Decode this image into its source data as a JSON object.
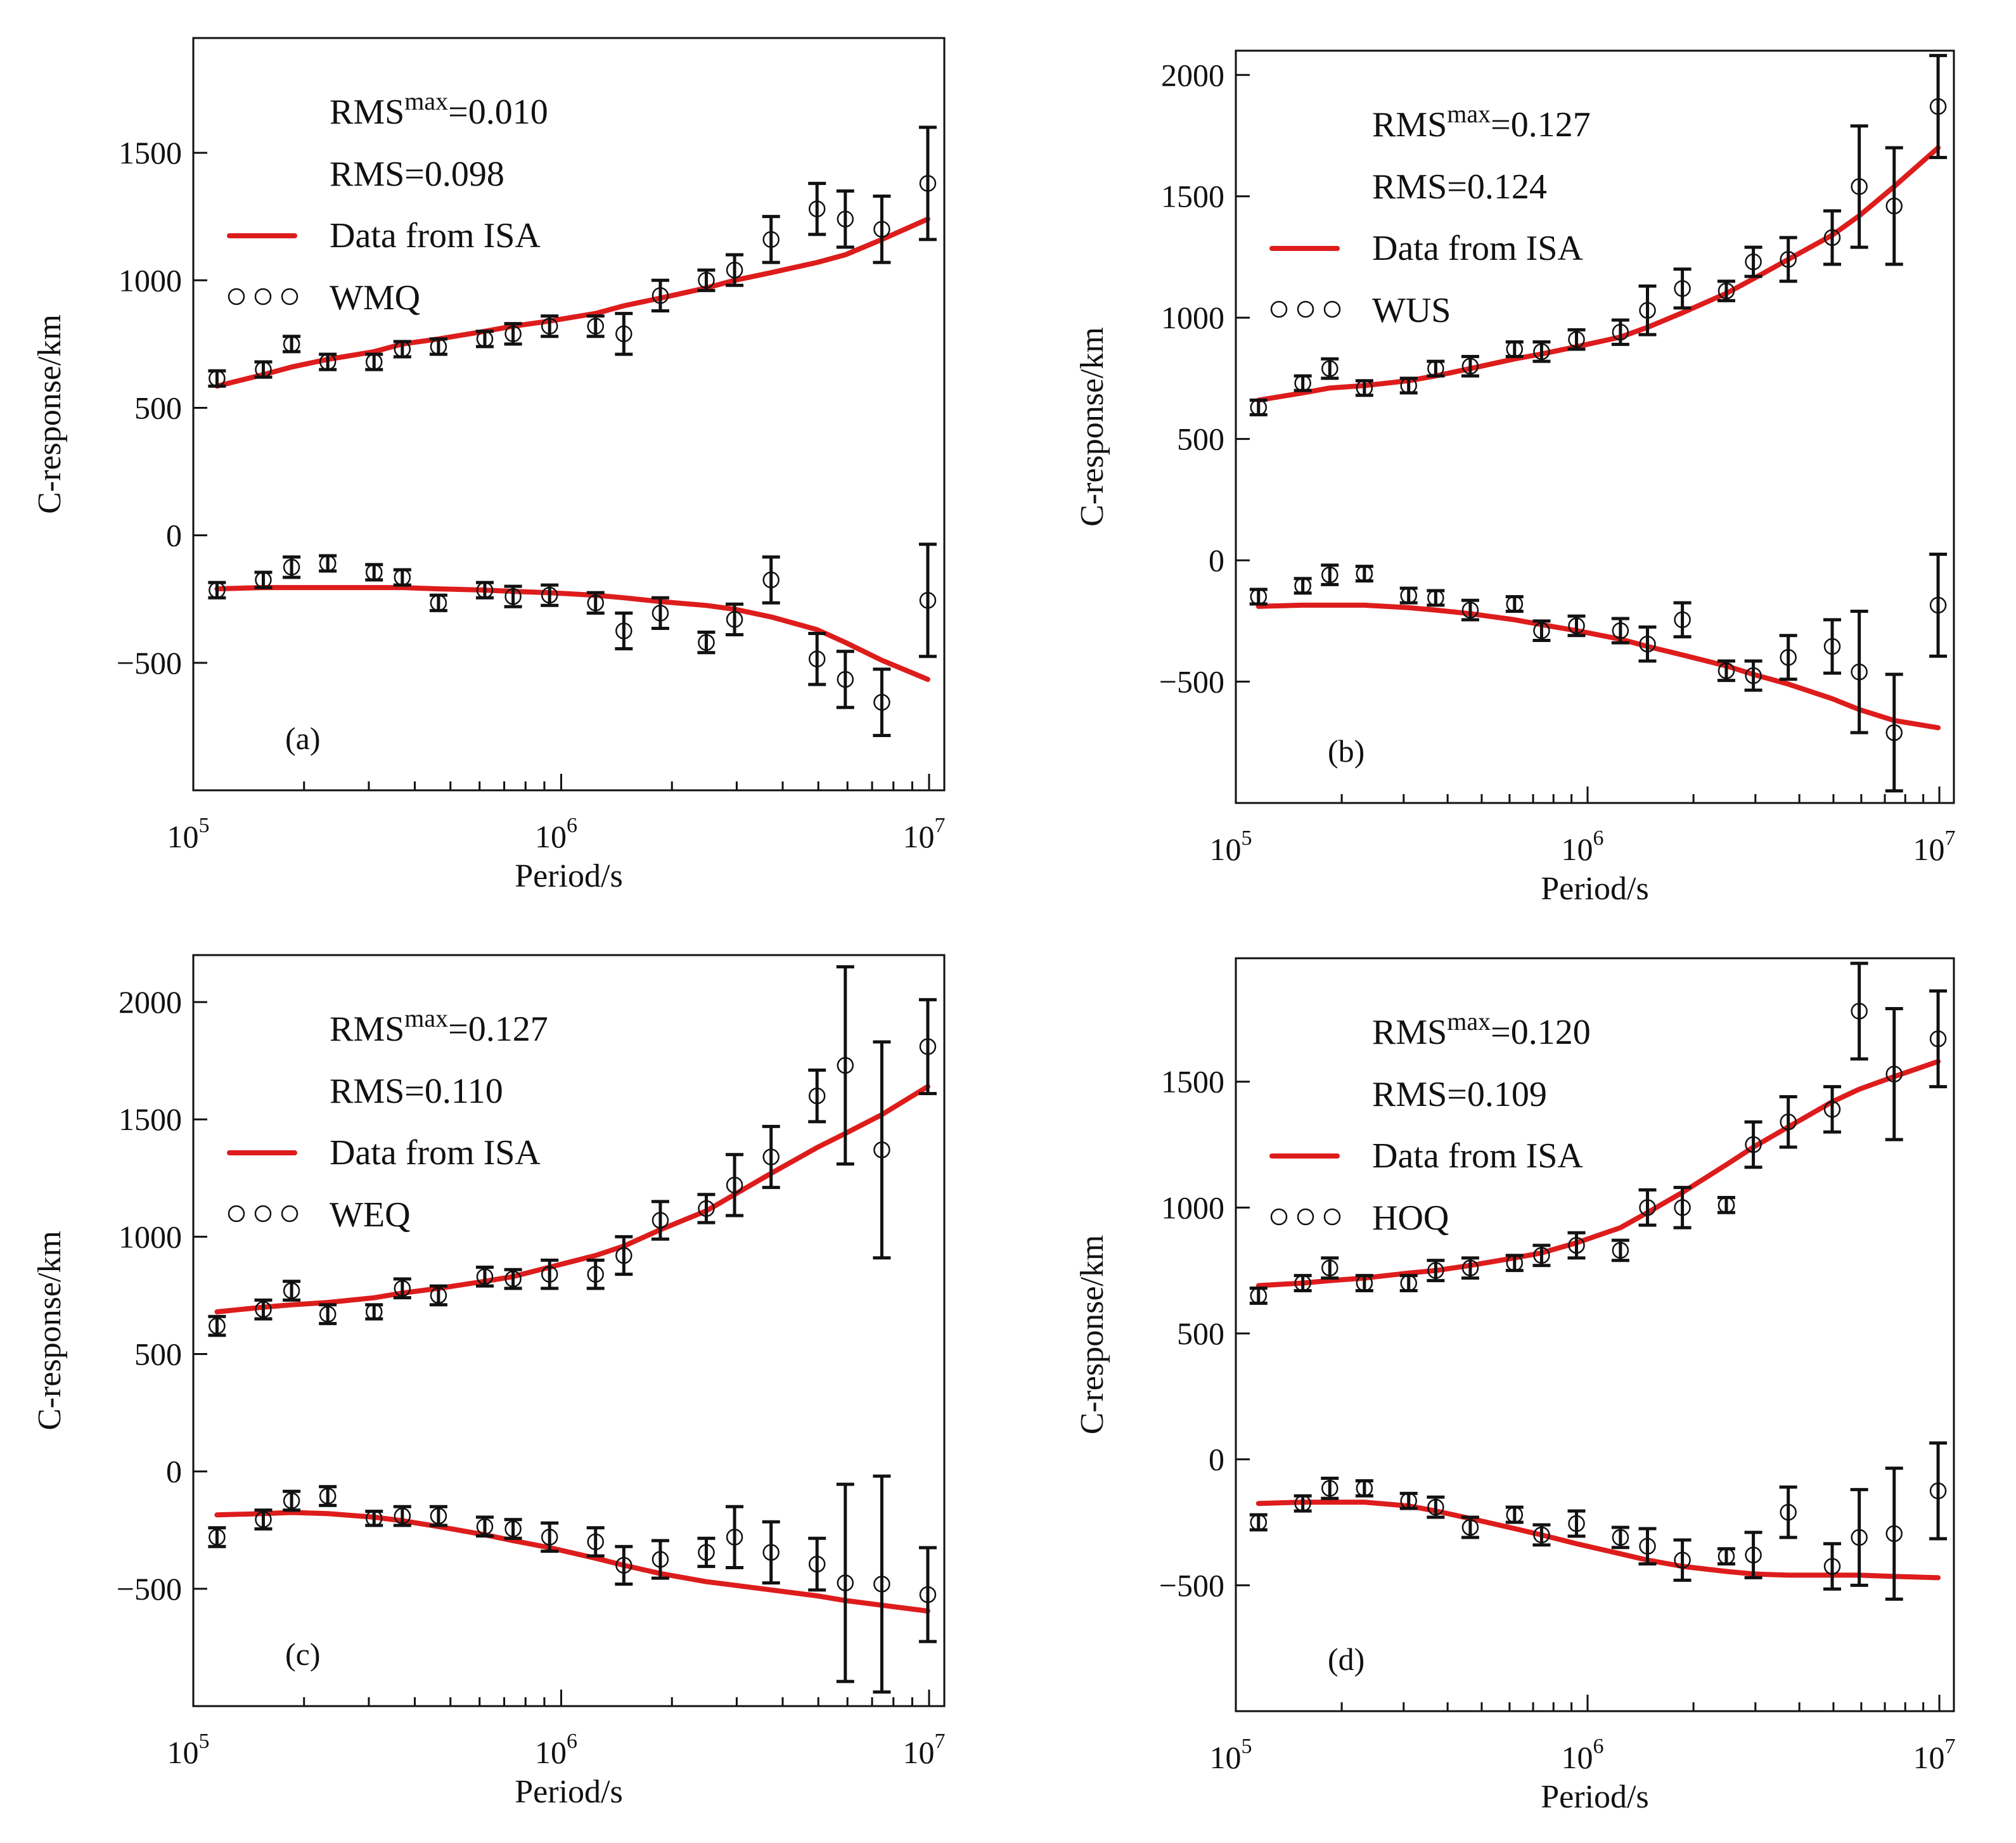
{
  "figure": {
    "colors": {
      "model_line": "#dd1c1c",
      "observed": "#111111"
    }
  },
  "chart_data": [
    {
      "type": "scatter",
      "panel_label": "(a)",
      "title": "",
      "xlabel": "Period/s",
      "ylabel": "C-response/km",
      "xscale": "log",
      "xlim": [
        100000,
        11000000
      ],
      "ylim": [
        -1000,
        1950
      ],
      "yticks": [
        -500,
        0,
        500,
        1000,
        1500
      ],
      "xticks": [
        100000,
        1000000,
        10000000
      ],
      "xtick_labels": [
        {
          "base": "10",
          "exp": "5"
        },
        {
          "base": "10",
          "exp": "6"
        },
        {
          "base": "10",
          "exp": "7"
        }
      ],
      "rms_max_label": "RMS",
      "rms_max_sup": "max",
      "rms_max_value": "=0.010",
      "rms_label": "RMS=0.098",
      "legend": {
        "line": "Data from ISA",
        "markers": "WMQ",
        "position": "top-left"
      },
      "periods": [
        116000,
        155000,
        185000,
        232000,
        310000,
        370000,
        464000,
        620000,
        740000,
        930000,
        1240000,
        1480000,
        1860000,
        2480000,
        2960000,
        3720000,
        4960000,
        5920000,
        7440000,
        9920000
      ],
      "series": [
        {
          "name": "WMQ real",
          "observed": [
            615,
            650,
            750,
            680,
            680,
            730,
            740,
            770,
            790,
            820,
            820,
            790,
            940,
            1000,
            1040,
            1160,
            1280,
            1240,
            1200,
            1380
          ],
          "error": [
            30,
            30,
            30,
            30,
            30,
            30,
            30,
            30,
            40,
            40,
            40,
            80,
            60,
            40,
            60,
            90,
            100,
            110,
            130,
            220
          ],
          "model": [
            585,
            630,
            660,
            690,
            720,
            750,
            770,
            800,
            820,
            840,
            870,
            900,
            930,
            970,
            1000,
            1030,
            1070,
            1100,
            1160,
            1240
          ]
        },
        {
          "name": "WMQ imaginary",
          "observed": [
            -215,
            -175,
            -125,
            -110,
            -145,
            -165,
            -265,
            -215,
            -240,
            -235,
            -265,
            -375,
            -305,
            -420,
            -330,
            -175,
            -485,
            -565,
            -655,
            -255
          ],
          "error": [
            30,
            30,
            40,
            30,
            30,
            30,
            30,
            30,
            40,
            40,
            40,
            70,
            60,
            40,
            60,
            90,
            100,
            110,
            130,
            220
          ],
          "model": [
            -210,
            -205,
            -205,
            -205,
            -205,
            -205,
            -210,
            -215,
            -220,
            -225,
            -235,
            -245,
            -260,
            -275,
            -290,
            -320,
            -370,
            -420,
            -490,
            -565
          ]
        }
      ]
    },
    {
      "type": "scatter",
      "panel_label": "(b)",
      "title": "",
      "xlabel": "Period/s",
      "ylabel": "C-response/km",
      "xscale": "log",
      "xlim": [
        100000,
        11000000
      ],
      "ylim": [
        -1000,
        2100
      ],
      "yticks": [
        -500,
        0,
        500,
        1000,
        1500,
        2000
      ],
      "xticks": [
        100000,
        1000000,
        10000000
      ],
      "xtick_labels": [
        {
          "base": "10",
          "exp": "5"
        },
        {
          "base": "10",
          "exp": "6"
        },
        {
          "base": "10",
          "exp": "7"
        }
      ],
      "rms_max_label": "RMS",
      "rms_max_sup": "max",
      "rms_max_value": "=0.127",
      "rms_label": "RMS=0.124",
      "legend": {
        "line": "Data from ISA",
        "markers": "WUS",
        "position": "top-left"
      },
      "periods": [
        116000,
        155000,
        185000,
        232000,
        310000,
        370000,
        464000,
        620000,
        740000,
        930000,
        1240000,
        1480000,
        1860000,
        2480000,
        2960000,
        3720000,
        4960000,
        5920000,
        7440000,
        9920000
      ],
      "series": [
        {
          "name": "WUS real",
          "observed": [
            630,
            730,
            790,
            710,
            720,
            790,
            800,
            870,
            860,
            910,
            940,
            1030,
            1120,
            1110,
            1230,
            1240,
            1330,
            1540,
            1460,
            1870
          ],
          "error": [
            30,
            30,
            40,
            30,
            30,
            30,
            40,
            30,
            40,
            40,
            50,
            100,
            80,
            40,
            60,
            90,
            110,
            250,
            240,
            210
          ],
          "model": [
            660,
            690,
            710,
            720,
            740,
            760,
            790,
            830,
            850,
            880,
            920,
            960,
            1020,
            1100,
            1160,
            1240,
            1340,
            1420,
            1540,
            1700
          ]
        },
        {
          "name": "WUS imaginary",
          "observed": [
            -150,
            -105,
            -60,
            -55,
            -145,
            -155,
            -205,
            -180,
            -290,
            -270,
            -290,
            -345,
            -245,
            -455,
            -475,
            -400,
            -355,
            -460,
            -710,
            -185
          ],
          "error": [
            30,
            30,
            40,
            30,
            30,
            30,
            40,
            30,
            40,
            40,
            50,
            70,
            70,
            40,
            60,
            90,
            110,
            250,
            240,
            210
          ],
          "model": [
            -190,
            -185,
            -185,
            -185,
            -195,
            -205,
            -220,
            -245,
            -265,
            -290,
            -325,
            -355,
            -390,
            -435,
            -470,
            -510,
            -570,
            -615,
            -660,
            -690
          ]
        }
      ]
    },
    {
      "type": "scatter",
      "panel_label": "(c)",
      "title": "",
      "xlabel": "Period/s",
      "ylabel": "C-response/km",
      "xscale": "log",
      "xlim": [
        100000,
        11000000
      ],
      "ylim": [
        -1000,
        2200
      ],
      "yticks": [
        -500,
        0,
        500,
        1000,
        1500,
        2000
      ],
      "xticks": [
        100000,
        1000000,
        10000000
      ],
      "xtick_labels": [
        {
          "base": "10",
          "exp": "5"
        },
        {
          "base": "10",
          "exp": "6"
        },
        {
          "base": "10",
          "exp": "7"
        }
      ],
      "rms_max_label": "RMS",
      "rms_max_sup": "max",
      "rms_max_value": "=0.127",
      "rms_label": "RMS=0.110",
      "legend": {
        "line": "Data from ISA",
        "markers": "WEQ",
        "position": "top-left"
      },
      "periods": [
        116000,
        155000,
        185000,
        232000,
        310000,
        370000,
        464000,
        620000,
        740000,
        930000,
        1240000,
        1480000,
        1860000,
        2480000,
        2960000,
        3720000,
        4960000,
        5920000,
        7440000,
        9920000
      ],
      "series": [
        {
          "name": "WEQ real",
          "observed": [
            620,
            690,
            770,
            670,
            680,
            780,
            750,
            830,
            820,
            840,
            840,
            920,
            1070,
            1120,
            1220,
            1340,
            1600,
            1730,
            1370,
            1810
          ],
          "error": [
            40,
            40,
            40,
            40,
            30,
            40,
            40,
            40,
            40,
            60,
            60,
            80,
            80,
            60,
            130,
            130,
            110,
            420,
            460,
            200
          ],
          "model": [
            680,
            700,
            710,
            720,
            740,
            760,
            780,
            810,
            830,
            870,
            920,
            960,
            1030,
            1110,
            1180,
            1270,
            1380,
            1440,
            1520,
            1640
          ]
        },
        {
          "name": "WEQ imaginary",
          "observed": [
            -280,
            -205,
            -125,
            -105,
            -200,
            -190,
            -190,
            -235,
            -245,
            -280,
            -300,
            -400,
            -375,
            -345,
            -280,
            -345,
            -395,
            -475,
            -480,
            -525
          ],
          "error": [
            40,
            40,
            40,
            40,
            30,
            40,
            40,
            40,
            40,
            60,
            60,
            80,
            80,
            60,
            130,
            130,
            110,
            420,
            460,
            200
          ],
          "model": [
            -185,
            -180,
            -175,
            -180,
            -195,
            -210,
            -235,
            -270,
            -295,
            -325,
            -370,
            -400,
            -435,
            -470,
            -485,
            -505,
            -530,
            -550,
            -570,
            -595
          ]
        }
      ]
    },
    {
      "type": "scatter",
      "panel_label": "(d)",
      "title": "",
      "xlabel": "Period/s",
      "ylabel": "C-response/km",
      "xscale": "log",
      "xlim": [
        100000,
        11000000
      ],
      "ylim": [
        -1000,
        1990
      ],
      "yticks": [
        -500,
        0,
        500,
        1000,
        1500
      ],
      "xticks": [
        100000,
        1000000,
        10000000
      ],
      "xtick_labels": [
        {
          "base": "10",
          "exp": "5"
        },
        {
          "base": "10",
          "exp": "6"
        },
        {
          "base": "10",
          "exp": "7"
        }
      ],
      "rms_max_label": "RMS",
      "rms_max_sup": "max",
      "rms_max_value": "=0.120",
      "rms_label": "RMS=0.109",
      "legend": {
        "line": "Data from ISA",
        "markers": "HOQ",
        "position": "top-left"
      },
      "periods": [
        116000,
        155000,
        185000,
        232000,
        310000,
        370000,
        464000,
        620000,
        740000,
        930000,
        1240000,
        1480000,
        1860000,
        2480000,
        2960000,
        3720000,
        4960000,
        5920000,
        7440000,
        9920000
      ],
      "series": [
        {
          "name": "HOQ real",
          "observed": [
            650,
            700,
            760,
            700,
            700,
            750,
            760,
            780,
            810,
            850,
            830,
            1000,
            1000,
            1010,
            1250,
            1340,
            1390,
            1780,
            1530,
            1670
          ],
          "error": [
            30,
            30,
            40,
            30,
            30,
            40,
            40,
            30,
            40,
            50,
            40,
            70,
            80,
            30,
            90,
            100,
            90,
            190,
            260,
            190
          ],
          "model": [
            690,
            700,
            710,
            720,
            740,
            750,
            770,
            800,
            820,
            860,
            920,
            980,
            1060,
            1170,
            1240,
            1320,
            1420,
            1470,
            1520,
            1580
          ]
        },
        {
          "name": "HOQ imaginary",
          "observed": [
            -250,
            -175,
            -115,
            -115,
            -165,
            -190,
            -270,
            -220,
            -300,
            -255,
            -310,
            -345,
            -400,
            -385,
            -380,
            -210,
            -425,
            -310,
            -295,
            -125
          ],
          "error": [
            30,
            30,
            40,
            30,
            30,
            40,
            40,
            30,
            40,
            50,
            40,
            70,
            80,
            30,
            90,
            100,
            90,
            190,
            260,
            190
          ],
          "model": [
            -175,
            -170,
            -170,
            -170,
            -185,
            -205,
            -235,
            -275,
            -300,
            -335,
            -375,
            -400,
            -425,
            -445,
            -455,
            -460,
            -460,
            -460,
            -465,
            -470
          ]
        }
      ]
    }
  ]
}
